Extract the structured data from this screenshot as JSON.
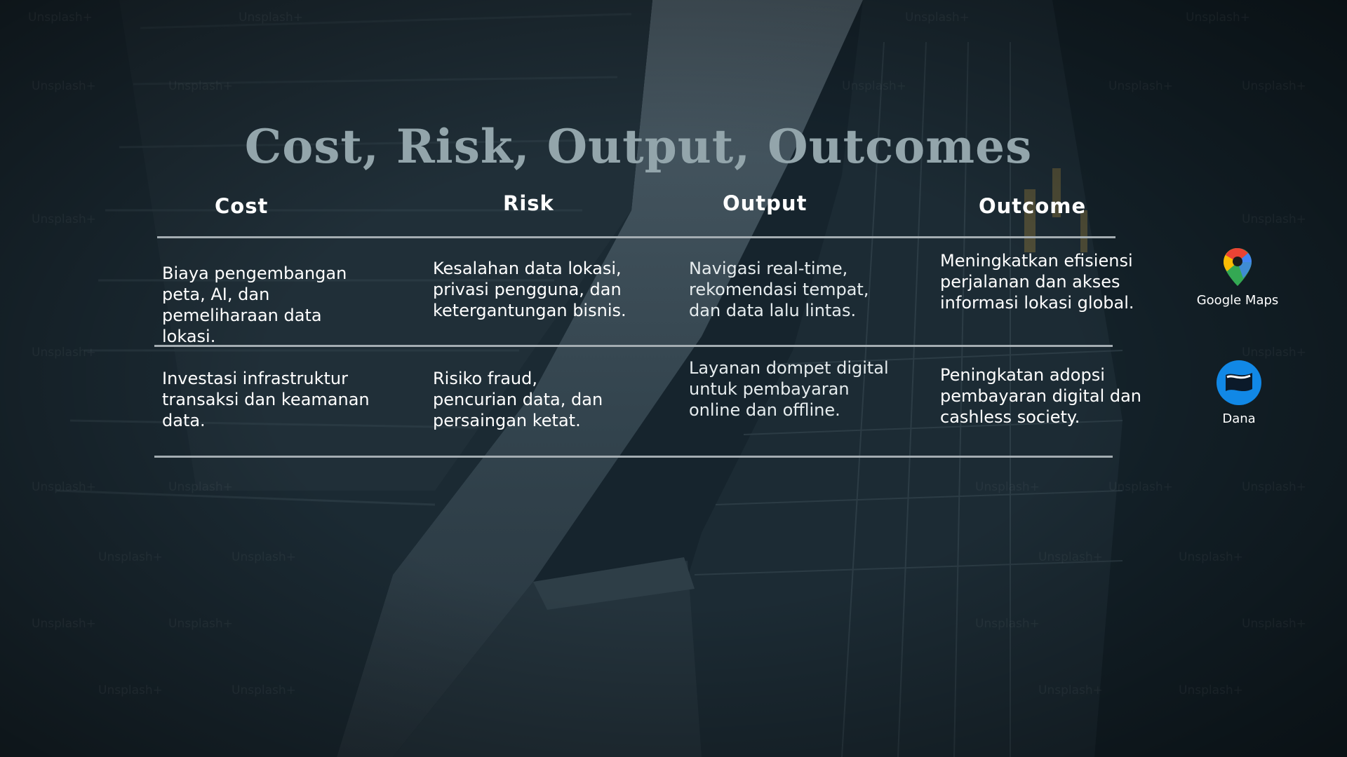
{
  "slide": {
    "title": "Cost, Risk, Output, Outcomes",
    "background_watermark": "Unsplash+"
  },
  "table": {
    "headers": [
      "Cost",
      "Risk",
      "Output",
      "Outcome"
    ],
    "rows": [
      {
        "cost": "Biaya pengembangan peta, AI, dan pemeliharaan data lokasi.",
        "risk": "Kesalahan data lokasi, privasi pengguna, dan ketergantungan bisnis.",
        "output": "Navigasi real-time, rekomendasi tempat, dan data lalu lintas.",
        "outcome": "Meningkatkan efisiensi perjalanan dan akses informasi lokasi global."
      },
      {
        "cost": "Investasi infrastruktur transaksi dan keamanan data.",
        "risk": "Risiko fraud, pencurian data, dan persaingan ketat.",
        "output": "Layanan dompet digital untuk pembayaran online dan offline.",
        "outcome": "Peningkatan adopsi pembayaran digital dan cashless society."
      }
    ]
  },
  "apps": [
    {
      "name": "Google Maps",
      "icon": "google-maps-pin-icon"
    },
    {
      "name": "Dana",
      "icon": "dana-wallet-icon"
    }
  ],
  "colors": {
    "title": "#93a5ab",
    "text": "#ffffff",
    "rule": "#a4adb2",
    "background": "#14222b",
    "dana_blue": "#1188e6"
  }
}
